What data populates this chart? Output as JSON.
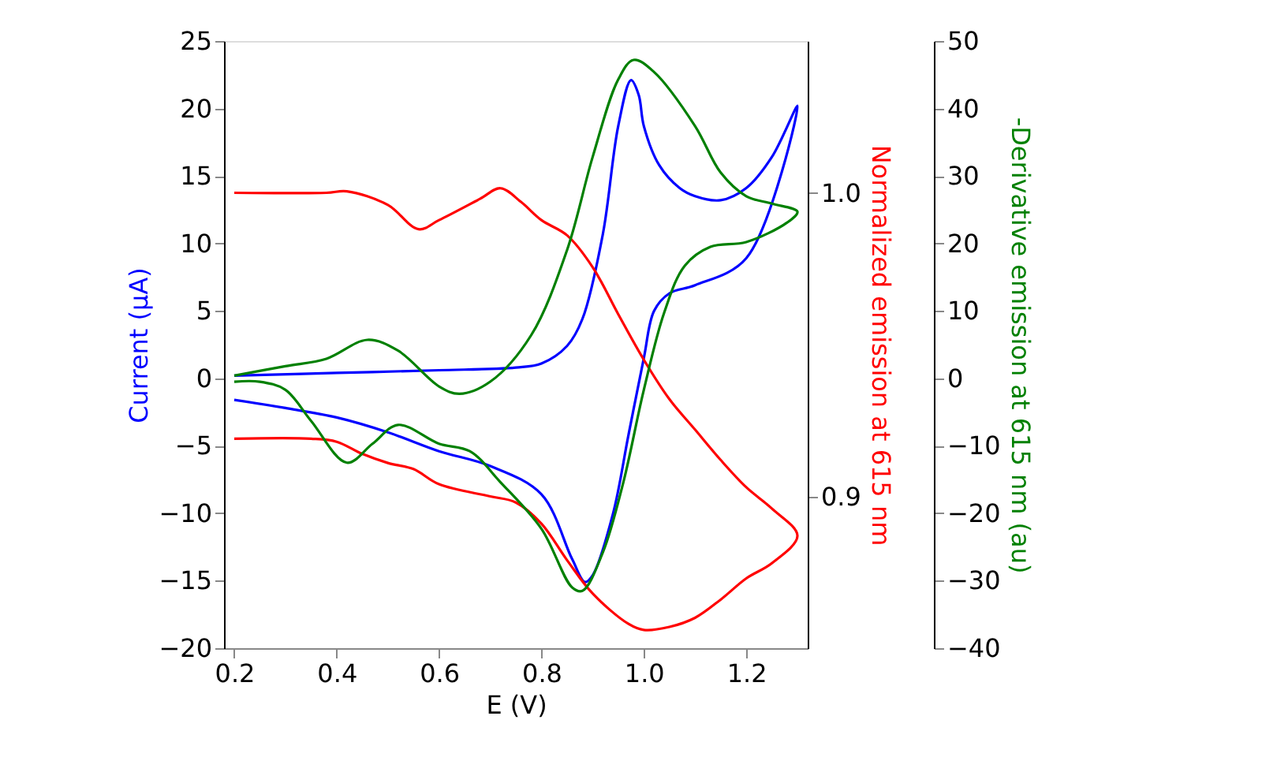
{
  "chart_data": {
    "type": "line",
    "xlabel": "E (V)",
    "ylabel": "Current (μA)",
    "y2label": "Normalized emission at 615 nm",
    "y3label": "-Derivative emission at 615 nm (au)",
    "xlim": [
      0.18,
      1.32
    ],
    "xticks": [
      0.2,
      0.4,
      0.6,
      0.8,
      {
        "value": 1.0,
        "label": "1.0"
      },
      1.2
    ],
    "ylim": [
      -20,
      25
    ],
    "yticks": [
      -20,
      -15,
      -10,
      -5,
      0,
      5,
      10,
      15,
      20,
      25
    ],
    "y2lim": [
      0.85,
      1.05
    ],
    "y2ticks": [
      {
        "value": 0.9,
        "label": "0.9"
      },
      {
        "value": 1.0,
        "label": "1.0"
      }
    ],
    "y3lim": [
      -40,
      50
    ],
    "y3ticks": [
      -40,
      -30,
      -20,
      -10,
      0,
      10,
      20,
      30,
      40,
      50
    ],
    "grid": false,
    "marker": "none",
    "line_style": "solid",
    "series": [
      {
        "color": "#0000ff",
        "axis": "y",
        "x": [
          0.2,
          0.4,
          0.6,
          0.75,
          0.8,
          0.85,
          0.88,
          0.92,
          0.95,
          0.975,
          0.99,
          1.0,
          1.03,
          1.07,
          1.1,
          1.15,
          1.2,
          1.25,
          1.3,
          1.2,
          1.1,
          1.05,
          1.02,
          1.0,
          0.97,
          0.94,
          0.9,
          0.885,
          0.86,
          0.8,
          0.7,
          0.6,
          0.5,
          0.4,
          0.3,
          0.2
        ],
        "values": [
          0.2,
          0.4,
          0.6,
          0.8,
          1.1,
          2.4,
          4.4,
          10.7,
          18.7,
          22.1,
          21,
          18.7,
          15.8,
          14.1,
          13.5,
          13.2,
          14.1,
          16.4,
          20.2,
          8.9,
          6.9,
          6.3,
          5,
          1.5,
          -4.2,
          -10,
          -14.6,
          -15.1,
          -13.4,
          -8.6,
          -6.5,
          -5.4,
          -4,
          -2.9,
          -2.2,
          -1.6
        ]
      },
      {
        "color": "#ff0000",
        "axis": "y2",
        "x": [
          0.2,
          0.38,
          0.42,
          0.5,
          0.56,
          0.6,
          0.68,
          0.72,
          0.76,
          0.8,
          0.85,
          0.9,
          0.95,
          1.0,
          1.05,
          1.1,
          1.15,
          1.2,
          1.25,
          1.3,
          1.25,
          1.2,
          1.15,
          1.1,
          1.05,
          1.0,
          0.97,
          0.9,
          0.85,
          0.8,
          0.75,
          0.7,
          0.6,
          0.55,
          0.5,
          0.45,
          0.4,
          0.35,
          0.2
        ],
        "values": [
          1.0,
          1.0,
          1.0005,
          0.996,
          0.988,
          0.991,
          0.998,
          1.0015,
          0.997,
          0.991,
          0.986,
          0.9755,
          0.96,
          0.945,
          0.932,
          0.922,
          0.912,
          0.903,
          0.896,
          0.887,
          0.878,
          0.873,
          0.866,
          0.86,
          0.857,
          0.856,
          0.858,
          0.868,
          0.879,
          0.891,
          0.898,
          0.9,
          0.904,
          0.909,
          0.911,
          0.914,
          0.918,
          0.919,
          0.919
        ]
      },
      {
        "color": "#008000",
        "axis": "y3",
        "x": [
          0.2,
          0.3,
          0.38,
          0.46,
          0.52,
          0.6,
          0.64,
          0.7,
          0.78,
          0.85,
          0.9,
          0.95,
          0.98,
          1.02,
          1.1,
          1.15,
          1.2,
          1.25,
          1.3,
          1.28,
          1.2,
          1.13,
          1.08,
          1.04,
          1.0,
          0.96,
          0.92,
          0.88,
          0.86,
          0.8,
          0.72,
          0.66,
          0.6,
          0.52,
          0.47,
          0.42,
          0.35,
          0.3,
          0.25,
          0.2
        ],
        "values": [
          0.4,
          1.8,
          2.9,
          5.7,
          4.1,
          -1.2,
          -2.3,
          -0.5,
          6.4,
          19,
          32.8,
          44.3,
          47.2,
          45.4,
          37.4,
          30.5,
          27,
          25.9,
          24.7,
          23.1,
          20.2,
          19.5,
          16.7,
          9.8,
          -1.7,
          -15.4,
          -25.8,
          -31.5,
          -31,
          -22.3,
          -15.4,
          -10.8,
          -9.7,
          -6.9,
          -9.7,
          -12.5,
          -6.3,
          -1.7,
          -0.5,
          -0.5
        ]
      }
    ]
  }
}
